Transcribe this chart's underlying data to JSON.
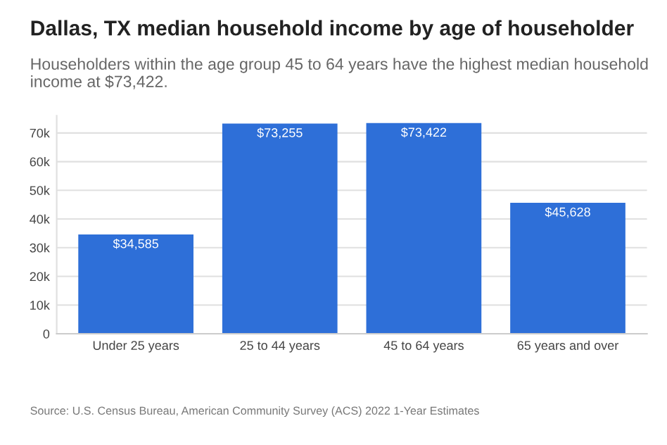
{
  "chart_data": {
    "type": "bar",
    "title": "Dallas, TX median household income by age of householder",
    "subtitle": "Householders within the age group 45 to 64 years have the highest median household income at $73,422.",
    "categories": [
      "Under 25 years",
      "25 to 44 years",
      "45 to 64 years",
      "65 years and over"
    ],
    "values": [
      34585,
      73255,
      73422,
      45628
    ],
    "value_labels": [
      "$34,585",
      "$73,255",
      "$73,422",
      "$45,628"
    ],
    "color": "#2e6fd8",
    "ylim": [
      0,
      76000
    ],
    "yticks": [
      0,
      {
        "value": 10000,
        "label": "10k"
      },
      {
        "value": 20000,
        "label": "20k"
      },
      {
        "value": 30000,
        "label": "30k"
      },
      {
        "value": 40000,
        "label": "40k"
      },
      {
        "value": 50000,
        "label": "50k"
      },
      {
        "value": 60000,
        "label": "60k"
      },
      {
        "value": 70000,
        "label": "70k"
      }
    ],
    "grid": "y",
    "annotations": [
      "Source: U.S. Census Bureau, American Community Survey (ACS) 2022 1-Year Estimates"
    ]
  }
}
